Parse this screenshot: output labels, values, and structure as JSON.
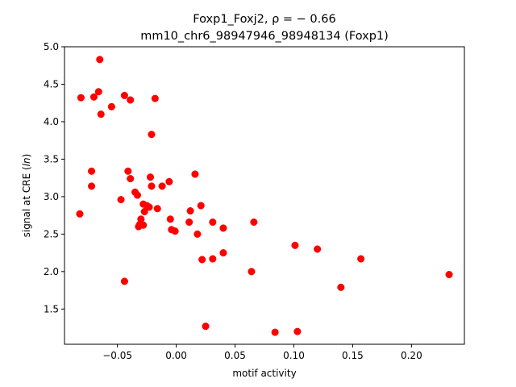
{
  "chart_data": {
    "type": "scatter",
    "title_line1": "Foxp1_Foxj2, ρ = − 0.66",
    "title_line2": "mm10_chr6_98947946_98948134 (Foxp1)",
    "xlabel": "motif activity",
    "ylabel": "signal at CRE (ln)",
    "xlim": [
      -0.095,
      0.245
    ],
    "ylim": [
      1.03,
      5.0
    ],
    "xticks": [
      -0.05,
      0.0,
      0.05,
      0.1,
      0.15,
      0.2
    ],
    "xtick_labels": [
      "−0.05",
      "0.00",
      "0.05",
      "0.10",
      "0.15",
      "0.20"
    ],
    "yticks": [
      1.5,
      2.0,
      2.5,
      3.0,
      3.5,
      4.0,
      4.5,
      5.0
    ],
    "ytick_labels": [
      "1.5",
      "2.0",
      "2.5",
      "3.0",
      "3.5",
      "4.0",
      "4.5",
      "5.0"
    ],
    "grid": false,
    "color": "#ff0000",
    "points": [
      {
        "x": -0.081,
        "y": 4.32
      },
      {
        "x": -0.07,
        "y": 4.33
      },
      {
        "x": -0.065,
        "y": 4.83
      },
      {
        "x": -0.066,
        "y": 4.4
      },
      {
        "x": -0.064,
        "y": 4.1
      },
      {
        "x": -0.055,
        "y": 4.2
      },
      {
        "x": -0.044,
        "y": 4.35
      },
      {
        "x": -0.039,
        "y": 4.29
      },
      {
        "x": -0.018,
        "y": 4.31
      },
      {
        "x": -0.021,
        "y": 3.83
      },
      {
        "x": -0.072,
        "y": 3.34
      },
      {
        "x": -0.072,
        "y": 3.14
      },
      {
        "x": -0.082,
        "y": 2.77
      },
      {
        "x": -0.047,
        "y": 2.96
      },
      {
        "x": -0.041,
        "y": 3.34
      },
      {
        "x": -0.039,
        "y": 3.24
      },
      {
        "x": -0.035,
        "y": 3.06
      },
      {
        "x": -0.033,
        "y": 3.02
      },
      {
        "x": -0.022,
        "y": 3.26
      },
      {
        "x": -0.021,
        "y": 3.14
      },
      {
        "x": -0.012,
        "y": 3.14
      },
      {
        "x": -0.006,
        "y": 3.2
      },
      {
        "x": 0.016,
        "y": 3.3
      },
      {
        "x": -0.028,
        "y": 2.9
      },
      {
        "x": -0.025,
        "y": 2.88
      },
      {
        "x": -0.023,
        "y": 2.86
      },
      {
        "x": -0.016,
        "y": 2.84
      },
      {
        "x": -0.027,
        "y": 2.8
      },
      {
        "x": -0.03,
        "y": 2.7
      },
      {
        "x": -0.031,
        "y": 2.63
      },
      {
        "x": -0.032,
        "y": 2.6
      },
      {
        "x": -0.028,
        "y": 2.62
      },
      {
        "x": -0.005,
        "y": 2.7
      },
      {
        "x": -0.004,
        "y": 2.56
      },
      {
        "x": -0.001,
        "y": 2.54
      },
      {
        "x": 0.011,
        "y": 2.66
      },
      {
        "x": 0.012,
        "y": 2.81
      },
      {
        "x": 0.021,
        "y": 2.88
      },
      {
        "x": 0.018,
        "y": 2.5
      },
      {
        "x": 0.031,
        "y": 2.66
      },
      {
        "x": 0.04,
        "y": 2.58
      },
      {
        "x": 0.066,
        "y": 2.66
      },
      {
        "x": 0.022,
        "y": 2.16
      },
      {
        "x": 0.031,
        "y": 2.17
      },
      {
        "x": 0.04,
        "y": 2.25
      },
      {
        "x": -0.044,
        "y": 1.87
      },
      {
        "x": 0.064,
        "y": 2.0
      },
      {
        "x": 0.101,
        "y": 2.35
      },
      {
        "x": 0.12,
        "y": 2.3
      },
      {
        "x": 0.157,
        "y": 2.17
      },
      {
        "x": 0.14,
        "y": 1.79
      },
      {
        "x": 0.232,
        "y": 1.96
      },
      {
        "x": 0.025,
        "y": 1.27
      },
      {
        "x": 0.084,
        "y": 1.19
      },
      {
        "x": 0.103,
        "y": 1.2
      }
    ]
  }
}
